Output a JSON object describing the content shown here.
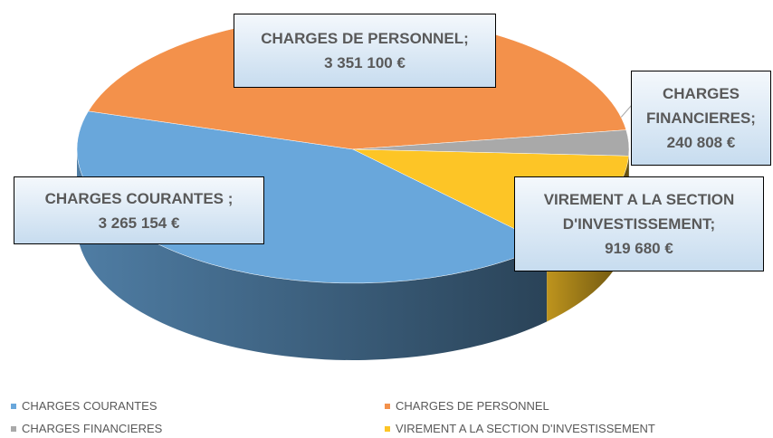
{
  "chart_data": {
    "type": "pie3d",
    "categories": [
      "CHARGES COURANTES",
      "CHARGES DE PERSONNEL",
      "CHARGES FINANCIERES",
      "VIREMENT A LA SECTION D'INVESTISSEMENT"
    ],
    "values": [
      3265154,
      3351100,
      240808,
      919680
    ],
    "value_labels": [
      "3 265 154 €",
      "3 351 100 €",
      "240 808 €",
      "919 680 €"
    ],
    "label_names": [
      "CHARGES COURANTES ;",
      "CHARGES DE PERSONNEL;",
      "CHARGES FINANCIERES;",
      "VIREMENT A LA SECTION D'INVESTISSEMENT;"
    ],
    "colors": [
      "#69a7db",
      "#f3914b",
      "#a9a9a9",
      "#fdc526"
    ],
    "legend": "bottom"
  }
}
